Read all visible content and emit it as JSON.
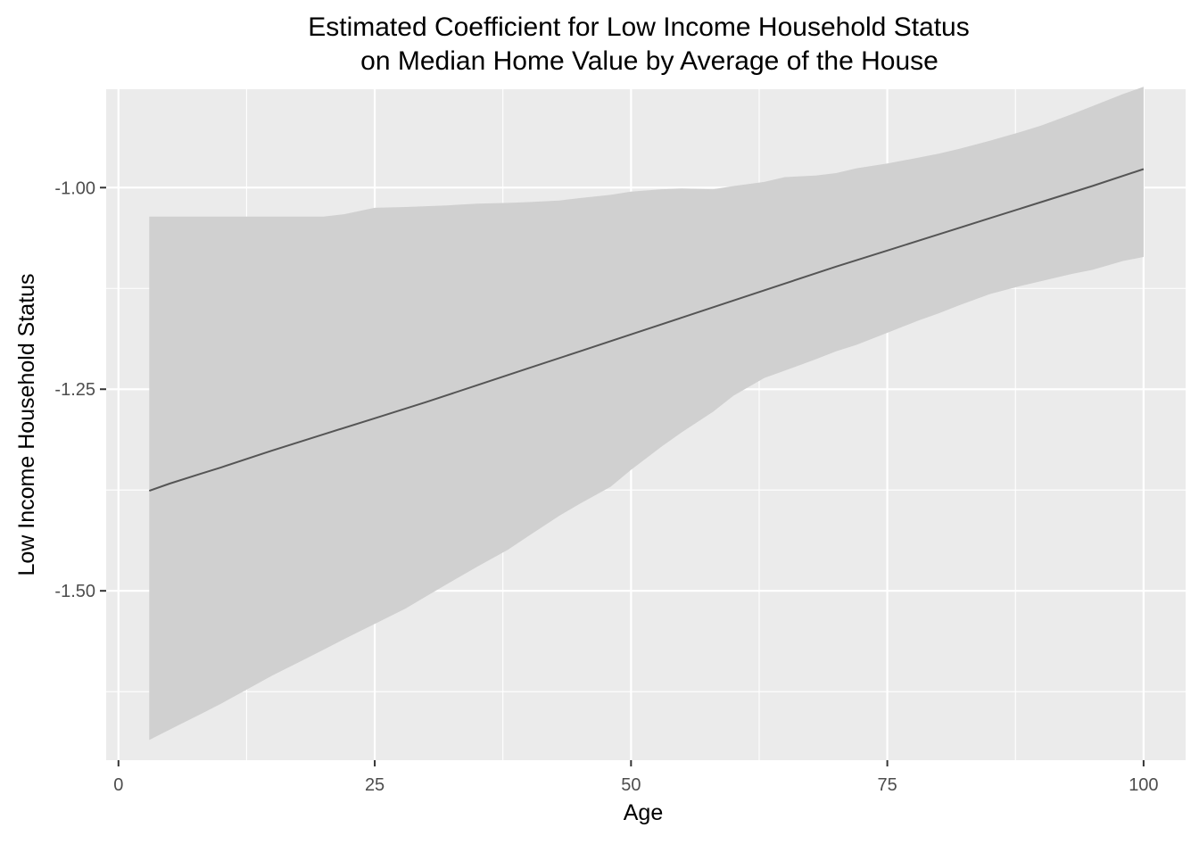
{
  "chart_data": {
    "type": "line",
    "title": "Estimated Coefficient for Low Income Household Status",
    "subtitle": "on Median Home Value by Average of the House",
    "xlabel": "Age",
    "ylabel": "Low Income Household Status",
    "xlim": [
      -1.2,
      104.1
    ],
    "ylim": [
      -1.71,
      -0.878
    ],
    "x_ticks": [
      0,
      25,
      50,
      75,
      100
    ],
    "x_tick_labels": [
      "0",
      "25",
      "50",
      "75",
      "100"
    ],
    "y_ticks": [
      -1.5,
      -1.25,
      -1.0
    ],
    "y_tick_labels": [
      "-1.50",
      "-1.25",
      "-1.00"
    ],
    "x_minor_gridlines": [
      12.5,
      37.5,
      62.5,
      87.5
    ],
    "y_minor_gridlines": [
      -1.625,
      -1.375,
      -1.125,
      -0.875
    ],
    "grid": true,
    "legend": "none",
    "series": [
      {
        "x": [
          3,
          5,
          8,
          10,
          15,
          20,
          25,
          30,
          35,
          40,
          45,
          50,
          55,
          60,
          65,
          70,
          75,
          80,
          85,
          90,
          95,
          100
        ],
        "values": [
          -1.376,
          -1.367,
          -1.355,
          -1.347,
          -1.326,
          -1.306,
          -1.286,
          -1.266,
          -1.245,
          -1.224,
          -1.203,
          -1.182,
          -1.161,
          -1.14,
          -1.119,
          -1.098,
          -1.078,
          -1.058,
          -1.038,
          -1.018,
          -0.998,
          -0.977
        ]
      }
    ],
    "confidence_band": {
      "x": [
        3,
        5,
        8,
        10,
        12,
        15,
        18,
        20,
        22,
        25,
        28,
        30,
        32,
        35,
        38,
        40,
        43,
        45,
        48,
        50,
        53,
        55,
        58,
        60,
        63,
        65,
        68,
        70,
        72,
        75,
        78,
        80,
        82,
        85,
        88,
        90,
        93,
        95,
        98,
        100
      ],
      "lower": [
        -1.685,
        -1.672,
        -1.653,
        -1.64,
        -1.626,
        -1.605,
        -1.586,
        -1.573,
        -1.56,
        -1.541,
        -1.522,
        -1.507,
        -1.492,
        -1.47,
        -1.449,
        -1.432,
        -1.407,
        -1.392,
        -1.371,
        -1.35,
        -1.321,
        -1.303,
        -1.278,
        -1.258,
        -1.236,
        -1.227,
        -1.213,
        -1.203,
        -1.195,
        -1.18,
        -1.165,
        -1.156,
        -1.146,
        -1.132,
        -1.122,
        -1.116,
        -1.107,
        -1.102,
        -1.091,
        -1.086
      ],
      "upper": [
        -1.036,
        -1.036,
        -1.036,
        -1.036,
        -1.036,
        -1.036,
        -1.036,
        -1.036,
        -1.033,
        -1.025,
        -1.024,
        -1.023,
        -1.022,
        -1.02,
        -1.019,
        -1.018,
        -1.016,
        -1.013,
        -1.009,
        -1.005,
        -1.002,
        -1.001,
        -1.002,
        -0.998,
        -0.993,
        -0.987,
        -0.985,
        -0.982,
        -0.976,
        -0.97,
        -0.963,
        -0.958,
        -0.952,
        -0.942,
        -0.931,
        -0.923,
        -0.909,
        -0.899,
        -0.884,
        -0.875
      ]
    },
    "colors": {
      "panel_background": "#ebebeb",
      "grid_major": "#ffffff",
      "band_fill": "#d0d0d0",
      "line": "#555555",
      "axis_text": "#4d4d4d",
      "title_text": "#000000"
    }
  }
}
